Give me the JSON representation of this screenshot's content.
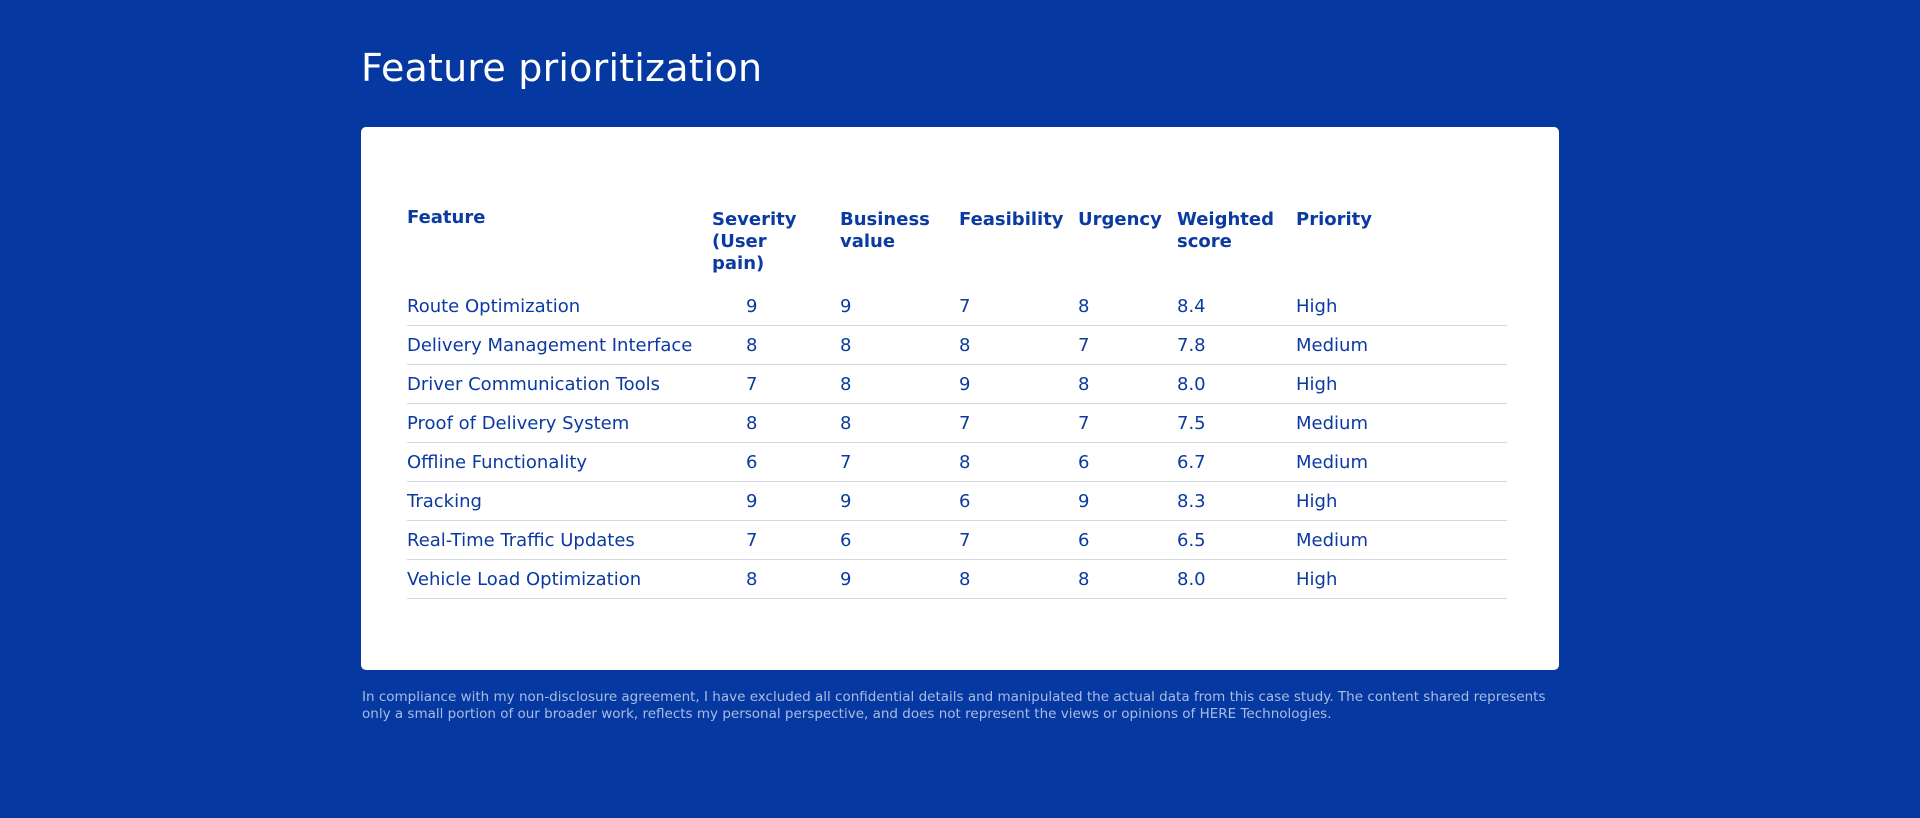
{
  "page": {
    "title": "Feature prioritization",
    "disclaimer": "In compliance with my non-disclosure agreement, I have excluded all confidential details and manipulated the actual data from this case study. The content shared represents only a small portion of our broader work, reflects my personal perspective, and does not represent the views or opinions of HERE Technologies."
  },
  "table": {
    "headers": {
      "feature": "Feature",
      "severity": "Severity (User pain)",
      "business": "Business value",
      "feasibility": "Feasibility",
      "urgency": "Urgency",
      "weighted": "Weighted score",
      "priority": "Priority"
    },
    "rows": [
      {
        "feature": "Route Optimization",
        "severity": "9",
        "business": "9",
        "feasibility": "7",
        "urgency": "8",
        "weighted": "8.4",
        "priority": "High"
      },
      {
        "feature": "Delivery Management Interface",
        "severity": "8",
        "business": "8",
        "feasibility": "8",
        "urgency": "7",
        "weighted": "7.8",
        "priority": "Medium"
      },
      {
        "feature": "Driver Communication Tools",
        "severity": "7",
        "business": "8",
        "feasibility": "9",
        "urgency": "8",
        "weighted": "8.0",
        "priority": "High"
      },
      {
        "feature": "Proof of Delivery System",
        "severity": "8",
        "business": "8",
        "feasibility": "7",
        "urgency": "7",
        "weighted": "7.5",
        "priority": "Medium"
      },
      {
        "feature": "Offline Functionality",
        "severity": "6",
        "business": "7",
        "feasibility": "8",
        "urgency": "6",
        "weighted": "6.7",
        "priority": "Medium"
      },
      {
        "feature": "Tracking",
        "severity": "9",
        "business": "9",
        "feasibility": "6",
        "urgency": "9",
        "weighted": "8.3",
        "priority": "High"
      },
      {
        "feature": "Real-Time Traffic Updates",
        "severity": "7",
        "business": "6",
        "feasibility": "7",
        "urgency": "6",
        "weighted": "6.5",
        "priority": "Medium"
      },
      {
        "feature": "Vehicle Load Optimization",
        "severity": "8",
        "business": "9",
        "feasibility": "8",
        "urgency": "8",
        "weighted": "8.0",
        "priority": "High"
      }
    ]
  },
  "colors": {
    "background": "#0538a0",
    "card": "#ffffff",
    "text_primary": "#0b3aa0",
    "divider": "#d5d9e0",
    "disclaimer": "#a9bde3"
  }
}
